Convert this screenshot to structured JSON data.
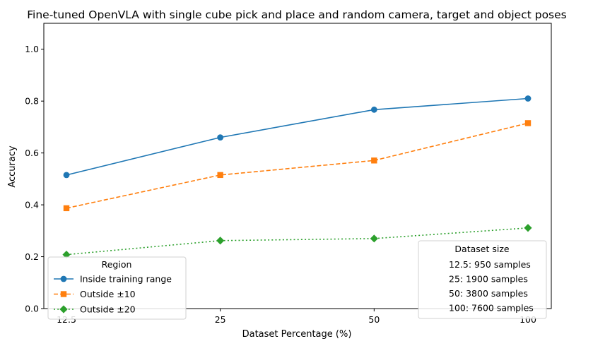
{
  "chart_data": {
    "type": "line",
    "title": "Fine-tuned OpenVLA with single cube pick and place and random camera, target and object poses",
    "xlabel": "Dataset Percentage (%)",
    "ylabel": "Accuracy",
    "categories": [
      "12.5",
      "25",
      "50",
      "100"
    ],
    "ylim": [
      0.0,
      1.1
    ],
    "yticks": [
      "0.0",
      "0.2",
      "0.4",
      "0.6",
      "0.8",
      "1.0"
    ],
    "grid": false,
    "series": [
      {
        "name": "Inside training range",
        "values": [
          0.515,
          0.66,
          0.767,
          0.81
        ],
        "color": "#1f77b4",
        "marker": "circle",
        "dash": "solid"
      },
      {
        "name": "Outside ±10",
        "values": [
          0.387,
          0.515,
          0.571,
          0.715
        ],
        "color": "#ff7f0e",
        "marker": "square",
        "dash": "dashed"
      },
      {
        "name": "Outside ±20",
        "values": [
          0.208,
          0.262,
          0.27,
          0.311
        ],
        "color": "#2ca02c",
        "marker": "diamond",
        "dash": "dotted"
      }
    ],
    "legend": {
      "title": "Region",
      "placement": "lower-left"
    },
    "dataset_legend": {
      "title": "Dataset size",
      "entries": [
        "12.5: 950 samples",
        "25: 1900 samples",
        "50: 3800 samples",
        "100: 7600 samples"
      ],
      "placement": "lower-right"
    }
  }
}
